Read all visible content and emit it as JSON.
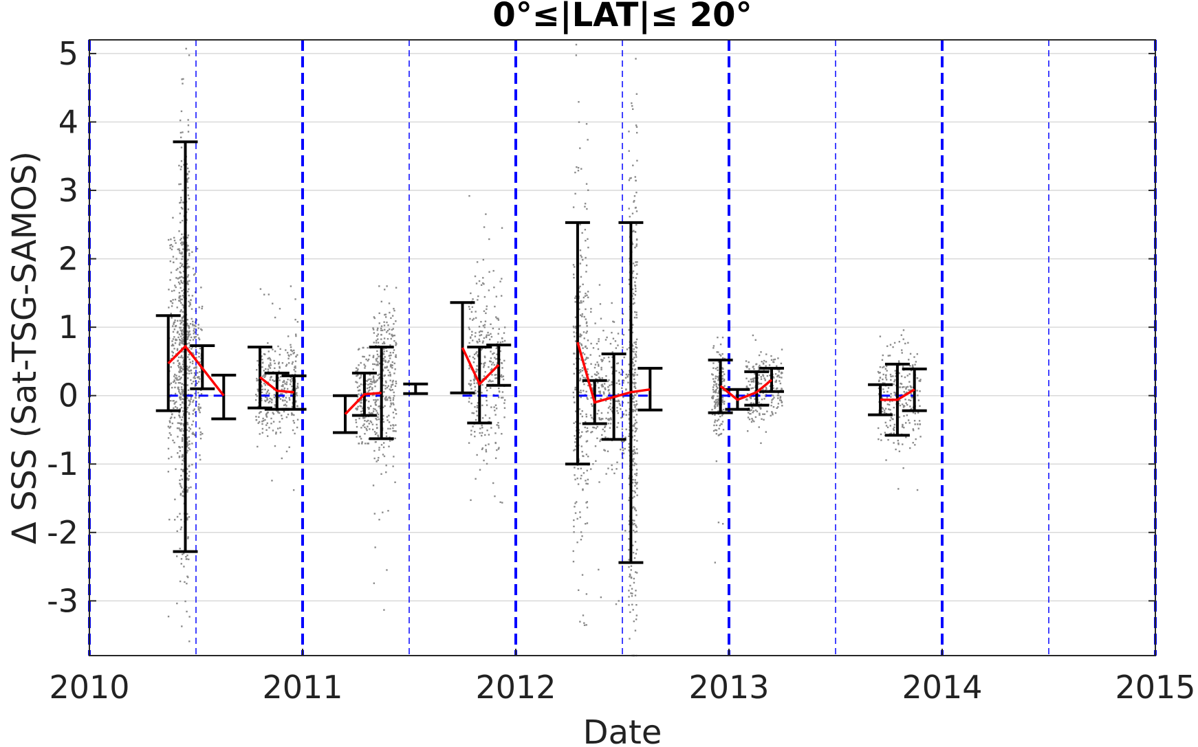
{
  "chart_data": {
    "type": "scatter",
    "title": "0°≤|LAT|≤ 20°",
    "xlabel": "Date",
    "ylabel": "Δ SSS (Sat-TSG-SAMOS)",
    "xlim": [
      2010,
      2015
    ],
    "ylim": [
      -3.8,
      5.2
    ],
    "x_ticks": [
      "2010",
      "2011",
      "2012",
      "2013",
      "2014",
      "2015"
    ],
    "y_ticks": [
      "-3",
      "-2",
      "-1",
      "0",
      "1",
      "2",
      "3",
      "4",
      "5"
    ],
    "grid": true,
    "year_boundaries": [
      2010,
      2011,
      2012,
      2013,
      2014,
      2015
    ],
    "half_year_lines": [
      2010.5,
      2011.5,
      2012.5,
      2013.5,
      2014.5
    ],
    "colors": {
      "scatter": "#8a8a8a",
      "mean_line": "#ff0000",
      "error_bars": "#000000",
      "reference": "#0000ff",
      "grid": "#d9d9d9"
    },
    "scatter_clusters": [
      {
        "x0": 2010.37,
        "x1": 2010.45,
        "center": 0.6,
        "spread": 0.8,
        "ymin": -3.3,
        "ymax": 2.6,
        "n": 260
      },
      {
        "x0": 2010.42,
        "x1": 2010.47,
        "center": 0.6,
        "spread": 1.6,
        "ymin": -3.8,
        "ymax": 5.2,
        "n": 420
      },
      {
        "x0": 2010.47,
        "x1": 2010.53,
        "center": 0.4,
        "spread": 0.6,
        "ymin": -1.5,
        "ymax": 2.2,
        "n": 160
      },
      {
        "x0": 2010.78,
        "x1": 2010.98,
        "center": 0.15,
        "spread": 0.35,
        "ymin": -1.6,
        "ymax": 1.7,
        "n": 320
      },
      {
        "x0": 2011.25,
        "x1": 2011.33,
        "center": -0.1,
        "spread": 0.4,
        "ymin": -0.7,
        "ymax": 0.7,
        "n": 150
      },
      {
        "x0": 2011.33,
        "x1": 2011.44,
        "center": 0.2,
        "spread": 0.6,
        "ymin": -3.3,
        "ymax": 1.6,
        "n": 320
      },
      {
        "x0": 2011.78,
        "x1": 2011.95,
        "center": 0.4,
        "spread": 0.6,
        "ymin": -1.7,
        "ymax": 3.2,
        "n": 320
      },
      {
        "x0": 2012.27,
        "x1": 2012.34,
        "center": 0.4,
        "spread": 1.3,
        "ymin": -3.5,
        "ymax": 5.2,
        "n": 260
      },
      {
        "x0": 2012.35,
        "x1": 2012.54,
        "center": 0.0,
        "spread": 0.5,
        "ymin": -3.2,
        "ymax": 1.7,
        "n": 260
      },
      {
        "x0": 2012.53,
        "x1": 2012.57,
        "center": 0.1,
        "spread": 1.8,
        "ymin": -3.8,
        "ymax": 5.2,
        "n": 360
      },
      {
        "x0": 2012.92,
        "x1": 2012.98,
        "center": 0.05,
        "spread": 0.35,
        "ymin": -2.7,
        "ymax": 0.85,
        "n": 160
      },
      {
        "x0": 2013.08,
        "x1": 2013.25,
        "center": 0.1,
        "spread": 0.25,
        "ymin": -0.7,
        "ymax": 0.9,
        "n": 240
      },
      {
        "x0": 2013.7,
        "x1": 2013.9,
        "center": 0.0,
        "spread": 0.35,
        "ymin": -1.45,
        "ymax": 1.1,
        "n": 260
      }
    ],
    "error_bars": [
      {
        "x": 2010.37,
        "mean": 0.47,
        "low": -0.22,
        "high": 1.17
      },
      {
        "x": 2010.45,
        "mean": 0.72,
        "low": -2.28,
        "high": 3.71
      },
      {
        "x": 2010.53,
        "mean": 0.4,
        "low": 0.1,
        "high": 0.73
      },
      {
        "x": 2010.63,
        "mean": 0.0,
        "low": -0.34,
        "high": 0.3
      },
      {
        "x": 2010.8,
        "mean": 0.27,
        "low": -0.18,
        "high": 0.71
      },
      {
        "x": 2010.88,
        "mean": 0.07,
        "low": -0.2,
        "high": 0.33
      },
      {
        "x": 2010.96,
        "mean": 0.05,
        "low": -0.2,
        "high": 0.29
      },
      {
        "x": 2011.2,
        "mean": -0.27,
        "low": -0.54,
        "high": 0.0
      },
      {
        "x": 2011.29,
        "mean": 0.02,
        "low": -0.29,
        "high": 0.33
      },
      {
        "x": 2011.37,
        "mean": 0.04,
        "low": -0.63,
        "high": 0.71
      },
      {
        "x": 2011.53,
        "mean": 0.1,
        "low": 0.03,
        "high": 0.17
      },
      {
        "x": 2011.75,
        "mean": 0.7,
        "low": 0.04,
        "high": 1.36
      },
      {
        "x": 2011.83,
        "mean": 0.17,
        "low": -0.4,
        "high": 0.71
      },
      {
        "x": 2011.92,
        "mean": 0.45,
        "low": 0.15,
        "high": 0.74
      },
      {
        "x": 2012.29,
        "mean": 0.78,
        "low": -1.0,
        "high": 2.53
      },
      {
        "x": 2012.37,
        "mean": -0.1,
        "low": -0.41,
        "high": 0.22
      },
      {
        "x": 2012.46,
        "mean": -0.02,
        "low": -0.64,
        "high": 0.61
      },
      {
        "x": 2012.54,
        "mean": 0.05,
        "low": -2.44,
        "high": 2.53
      },
      {
        "x": 2012.63,
        "mean": 0.09,
        "low": -0.21,
        "high": 0.4
      },
      {
        "x": 2012.96,
        "mean": 0.14,
        "low": -0.25,
        "high": 0.52
      },
      {
        "x": 2013.04,
        "mean": -0.06,
        "low": -0.2,
        "high": 0.09
      },
      {
        "x": 2013.13,
        "mean": 0.05,
        "low": -0.14,
        "high": 0.35
      },
      {
        "x": 2013.2,
        "mean": 0.23,
        "low": 0.06,
        "high": 0.4
      },
      {
        "x": 2013.71,
        "mean": -0.06,
        "low": -0.28,
        "high": 0.16
      },
      {
        "x": 2013.79,
        "mean": -0.06,
        "low": -0.58,
        "high": 0.46
      },
      {
        "x": 2013.87,
        "mean": 0.09,
        "low": -0.22,
        "high": 0.39
      }
    ],
    "mean_lines": [
      [
        2010.37,
        2010.45,
        2010.53,
        2010.63
      ],
      [
        2010.8,
        2010.88,
        2010.96
      ],
      [
        2011.2,
        2011.29,
        2011.37
      ],
      [
        2011.75,
        2011.83,
        2011.92
      ],
      [
        2012.29,
        2012.37,
        2012.46,
        2012.54,
        2012.63
      ],
      [
        2012.96,
        2013.04,
        2013.13,
        2013.2
      ],
      [
        2013.71,
        2013.79,
        2013.87
      ]
    ],
    "zero_reference_segments": [
      [
        2010.37,
        2010.63
      ],
      [
        2010.8,
        2010.96
      ],
      [
        2011.2,
        2011.37
      ],
      [
        2011.75,
        2011.92
      ],
      [
        2012.29,
        2012.63
      ],
      [
        2012.96,
        2013.2
      ],
      [
        2013.71,
        2013.87
      ]
    ]
  }
}
